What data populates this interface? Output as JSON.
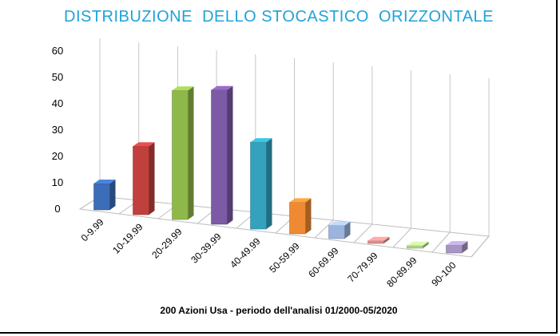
{
  "chart_data": {
    "type": "bar",
    "title": "DISTRIBUZIONE  DELLO STOCASTICO  ORIZZONTALE",
    "subtitle": "200 Azioni Usa - periodo dell'analisi 01/2000-05/2020",
    "xlabel": "",
    "ylabel": "",
    "ylim": [
      0,
      60
    ],
    "yticks": [
      0,
      10,
      20,
      30,
      40,
      50,
      60
    ],
    "categories": [
      "0-9.99",
      "10-19.99",
      "20-29.99",
      "30-39.99",
      "40-49.99",
      "50-59.99",
      "60-69.99",
      "70-79.99",
      "80-89.99",
      "90-100"
    ],
    "values": [
      10,
      26,
      49,
      51,
      33,
      12,
      5,
      1,
      1,
      3
    ],
    "colors": [
      "#3c6db8",
      "#c0403e",
      "#8fb84a",
      "#7c5aa6",
      "#34a2bd",
      "#ef8a33",
      "#9bb4dc",
      "#d88e8c",
      "#b3cf8a",
      "#a796c4"
    ],
    "grid": true,
    "legend": "none",
    "style": "3d-column"
  }
}
